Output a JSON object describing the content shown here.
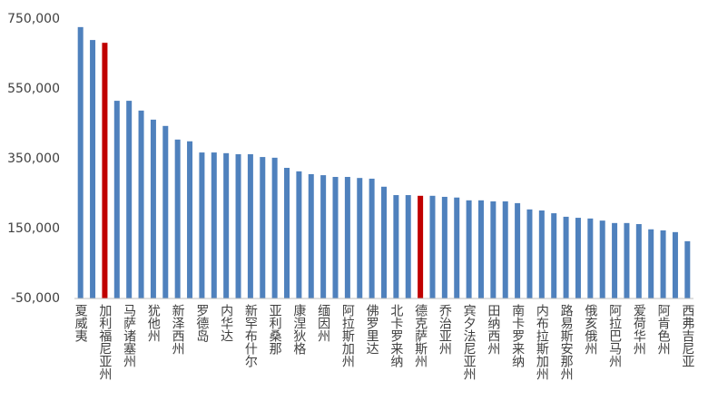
{
  "chart_data": {
    "type": "bar",
    "categories": [
      "夏威夷",
      null,
      "加利福尼亚州",
      null,
      "马萨诸塞州",
      null,
      "犹他州",
      null,
      "新泽西州",
      null,
      "罗德岛",
      null,
      "内华达",
      null,
      "新罕布什尔",
      null,
      "亚利桑那",
      null,
      "康涅狄格",
      null,
      "缅因州",
      null,
      "阿拉斯加州",
      null,
      "佛罗里达",
      null,
      "北卡罗来纳",
      null,
      "德克萨斯州",
      null,
      "乔治亚州",
      null,
      "宾夕法尼亚州",
      null,
      "田纳西州",
      null,
      "南卡罗来纳",
      null,
      "内布拉斯加州",
      null,
      "路易斯安那州",
      null,
      "俄亥俄州",
      null,
      "阿拉巴马州",
      null,
      "爱荷华州",
      null,
      "阿肯色州",
      null,
      "西弗吉尼亚"
    ],
    "values": [
      727000,
      690000,
      682000,
      516000,
      516000,
      488000,
      462000,
      444000,
      405000,
      400000,
      368000,
      368000,
      366000,
      363000,
      363000,
      355000,
      353000,
      324000,
      314000,
      306000,
      303000,
      298000,
      298000,
      295000,
      293000,
      270000,
      246000,
      246000,
      244000,
      244000,
      241000,
      239000,
      231000,
      231000,
      228000,
      228000,
      223000,
      205000,
      202000,
      194000,
      184000,
      181000,
      179000,
      173000,
      166000,
      166000,
      163000,
      148000,
      145000,
      140000,
      114000
    ],
    "colors": [
      "#4f81bd",
      "#4f81bd",
      "#c00000",
      "#4f81bd",
      "#4f81bd",
      "#4f81bd",
      "#4f81bd",
      "#4f81bd",
      "#4f81bd",
      "#4f81bd",
      "#4f81bd",
      "#4f81bd",
      "#4f81bd",
      "#4f81bd",
      "#4f81bd",
      "#4f81bd",
      "#4f81bd",
      "#4f81bd",
      "#4f81bd",
      "#4f81bd",
      "#4f81bd",
      "#4f81bd",
      "#4f81bd",
      "#4f81bd",
      "#4f81bd",
      "#4f81bd",
      "#4f81bd",
      "#4f81bd",
      "#c00000",
      "#4f81bd",
      "#4f81bd",
      "#4f81bd",
      "#4f81bd",
      "#4f81bd",
      "#4f81bd",
      "#4f81bd",
      "#4f81bd",
      "#4f81bd",
      "#4f81bd",
      "#4f81bd",
      "#4f81bd",
      "#4f81bd",
      "#4f81bd",
      "#4f81bd",
      "#4f81bd",
      "#4f81bd",
      "#4f81bd",
      "#4f81bd",
      "#4f81bd",
      "#4f81bd",
      "#4f81bd"
    ],
    "ylim": [
      -50000,
      750000
    ],
    "yticks": [
      {
        "value": -50000,
        "label": "-50,000"
      },
      {
        "value": 150000,
        "label": "150,000"
      },
      {
        "value": 350000,
        "label": "350,000"
      },
      {
        "value": 550000,
        "label": "550,000"
      },
      {
        "value": 750000,
        "label": "750,000"
      }
    ],
    "grid": false
  }
}
